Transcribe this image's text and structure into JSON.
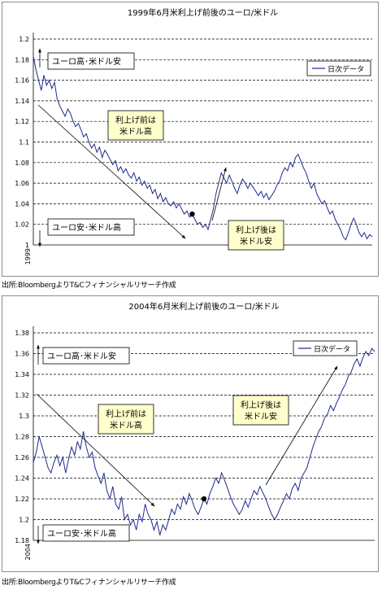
{
  "chart_data": [
    {
      "type": "line",
      "title": "1999年6月米利上げ前後のユーロ/米ドル",
      "yticks": [
        "1.2",
        "1.18",
        "1.16",
        "1.14",
        "1.12",
        "1.1",
        "1.08",
        "1.06",
        "1.04",
        "1.02",
        "1"
      ],
      "ylim": [
        1.0,
        1.2
      ],
      "x_label": "1999",
      "grid": "horizontal dashed",
      "legend": "日次データ",
      "legend_position": "top-right",
      "annotations": {
        "top_left": "ユーロ高･米ドル安",
        "bottom_left": "ユーロ安･米ドル高",
        "before": [
          "利上げ前は",
          "米ドル高"
        ],
        "after": [
          "利上げ後は",
          "米ドル安"
        ]
      },
      "series": [
        {
          "values": [
            1.183,
            1.17,
            1.16,
            1.15,
            1.165,
            1.155,
            1.16,
            1.152,
            1.158,
            1.142,
            1.135,
            1.13,
            1.125,
            1.132,
            1.128,
            1.12,
            1.115,
            1.118,
            1.112,
            1.105,
            1.108,
            1.1,
            1.094,
            1.098,
            1.09,
            1.095,
            1.085,
            1.092,
            1.088,
            1.083,
            1.078,
            1.082,
            1.072,
            1.076,
            1.07,
            1.074,
            1.068,
            1.065,
            1.07,
            1.062,
            1.066,
            1.058,
            1.062,
            1.055,
            1.058,
            1.05,
            1.054,
            1.045,
            1.05,
            1.042,
            1.046,
            1.04,
            1.038,
            1.042,
            1.036,
            1.04,
            1.035,
            1.03,
            1.033,
            1.027,
            1.03,
            1.025,
            1.02,
            1.022,
            1.017,
            1.02,
            1.015,
            1.025,
            1.035,
            1.05,
            1.06,
            1.07,
            1.065,
            1.06,
            1.068,
            1.062,
            1.055,
            1.05,
            1.058,
            1.064,
            1.06,
            1.055,
            1.06,
            1.056,
            1.052,
            1.048,
            1.052,
            1.046,
            1.05,
            1.044,
            1.048,
            1.052,
            1.058,
            1.062,
            1.07,
            1.075,
            1.072,
            1.08,
            1.076,
            1.085,
            1.088,
            1.082,
            1.075,
            1.07,
            1.062,
            1.055,
            1.06,
            1.05,
            1.045,
            1.04,
            1.043,
            1.036,
            1.03,
            1.033,
            1.025,
            1.02,
            1.015,
            1.008,
            1.005,
            1.012,
            1.02,
            1.026,
            1.02,
            1.012,
            1.008,
            1.012,
            1.006,
            1.01,
            1.008
          ]
        }
      ]
    },
    {
      "type": "line",
      "title": "2004年6月米利上げ前後のユーロ/米ドル",
      "yticks": [
        "1.38",
        "1.36",
        "1.34",
        "1.32",
        "1.3",
        "1.28",
        "1.26",
        "1.24",
        "1.22",
        "1.2",
        "1.18"
      ],
      "ylim": [
        1.18,
        1.38
      ],
      "x_label": "2004",
      "grid": "horizontal dashed",
      "legend": "日次データ",
      "legend_position": "top-right",
      "annotations": {
        "top_left": "ユーロ高･米ドル安",
        "bottom_left": "ユーロ安･米ドル高",
        "before": [
          "利上げ前は",
          "米ドル高"
        ],
        "after": [
          "利上げ後は",
          "米ドル安"
        ]
      },
      "series": [
        {
          "values": [
            1.255,
            1.265,
            1.28,
            1.27,
            1.26,
            1.25,
            1.245,
            1.255,
            1.262,
            1.252,
            1.26,
            1.245,
            1.258,
            1.27,
            1.262,
            1.275,
            1.268,
            1.285,
            1.27,
            1.26,
            1.265,
            1.25,
            1.242,
            1.235,
            1.245,
            1.228,
            1.22,
            1.232,
            1.215,
            1.21,
            1.222,
            1.2,
            1.205,
            1.195,
            1.2,
            1.19,
            1.205,
            1.198,
            1.215,
            1.205,
            1.2,
            1.19,
            1.198,
            1.185,
            1.195,
            1.19,
            1.2,
            1.21,
            1.205,
            1.215,
            1.21,
            1.222,
            1.215,
            1.225,
            1.218,
            1.21,
            1.205,
            1.212,
            1.22,
            1.215,
            1.225,
            1.232,
            1.24,
            1.235,
            1.245,
            1.238,
            1.23,
            1.222,
            1.215,
            1.21,
            1.205,
            1.21,
            1.218,
            1.212,
            1.22,
            1.228,
            1.224,
            1.232,
            1.226,
            1.22,
            1.212,
            1.205,
            1.2,
            1.205,
            1.212,
            1.218,
            1.225,
            1.22,
            1.23,
            1.235,
            1.228,
            1.24,
            1.245,
            1.25,
            1.26,
            1.27,
            1.278,
            1.285,
            1.29,
            1.298,
            1.302,
            1.31,
            1.305,
            1.312,
            1.318,
            1.325,
            1.33,
            1.338,
            1.342,
            1.35,
            1.355,
            1.348,
            1.356,
            1.362,
            1.358,
            1.365,
            1.362
          ]
        }
      ]
    }
  ],
  "footer": {
    "source1": "出所:BloombergよりT&Cフィナンシャルリサーチ作成",
    "source2": "出所:BloombergよりT&Cフィナンシャルリサーチ作成"
  },
  "colors": {
    "line": "#1c2a8c",
    "note_bg": "#ffffcc",
    "grid": "#000000"
  }
}
